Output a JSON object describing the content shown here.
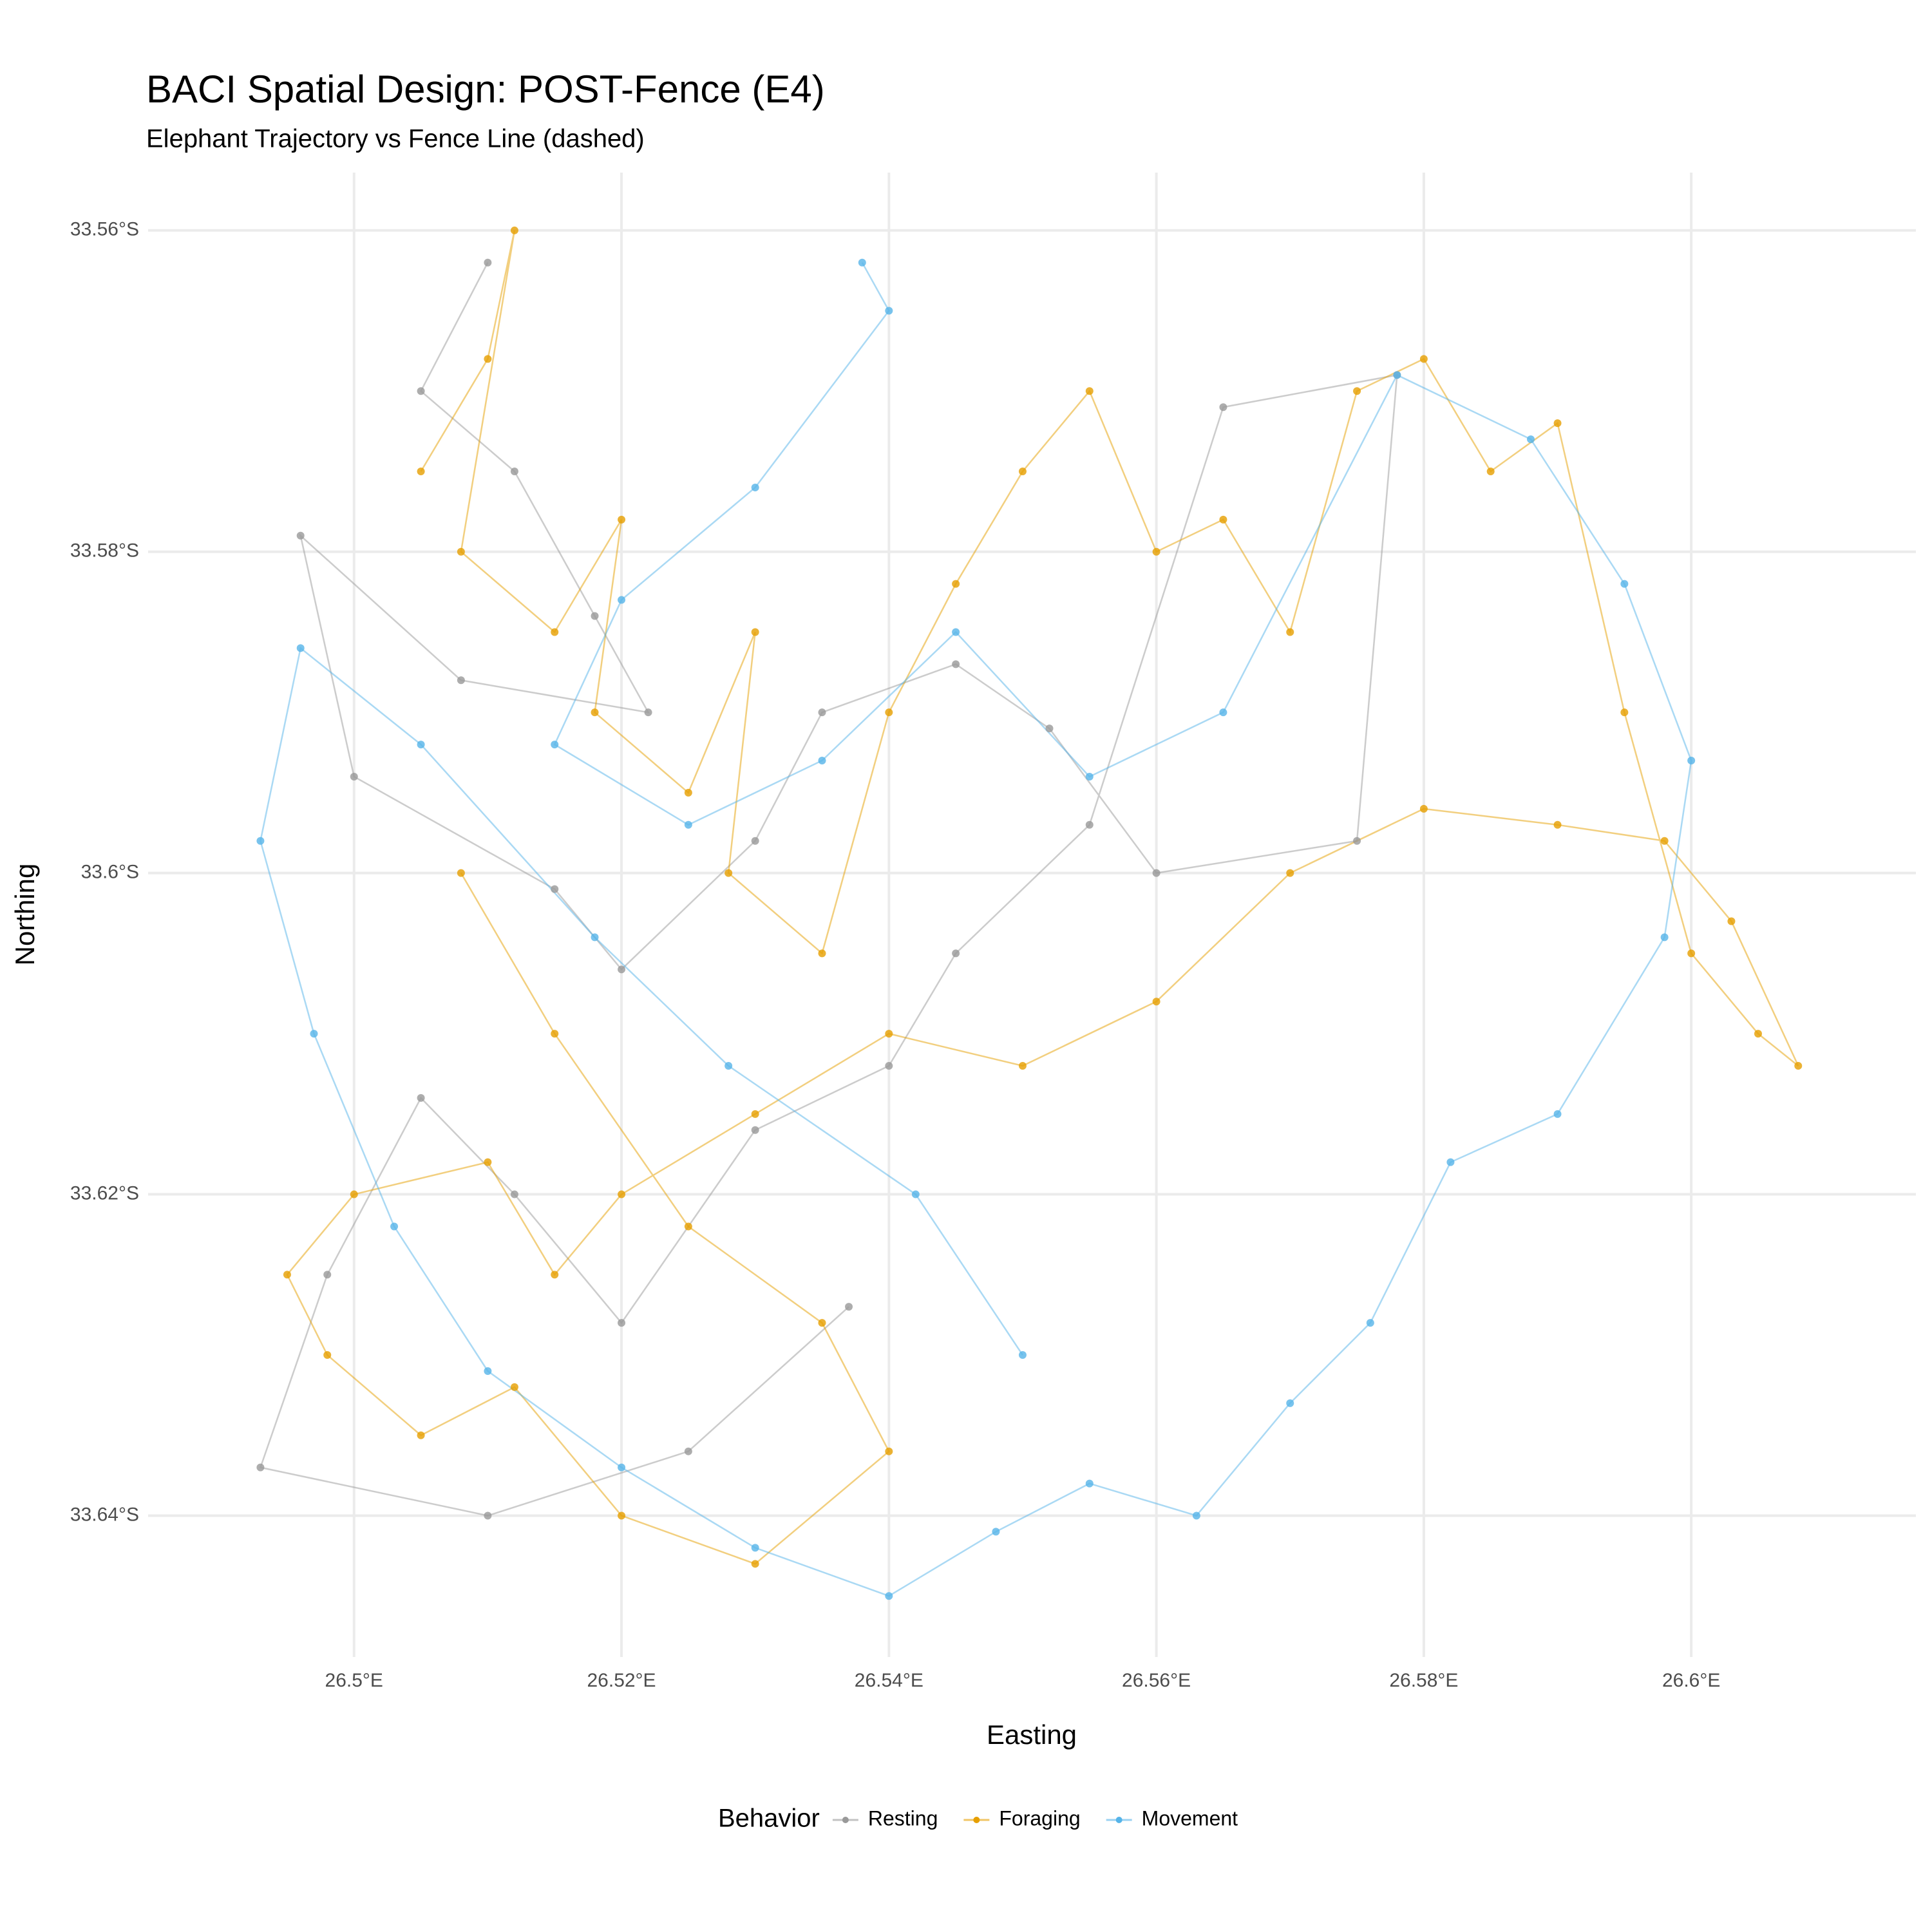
{
  "chart_data": {
    "type": "scatter",
    "title": "BACI Spatial Design: POST-Fence (E4)",
    "subtitle": "Elephant Trajectory vs Fence Line (dashed)",
    "x_label": "Easting",
    "y_label": "Northing",
    "legend_title": "Behavior",
    "legend_position": "bottom",
    "grid": true,
    "xlim": [
      26.4846,
      26.6168
    ],
    "ylim": [
      -33.6488,
      -33.5564
    ],
    "xticks": [
      {
        "value": 26.5,
        "label": "26.5°E"
      },
      {
        "value": 26.52,
        "label": "26.52°E"
      },
      {
        "value": 26.54,
        "label": "26.54°E"
      },
      {
        "value": 26.56,
        "label": "26.56°E"
      },
      {
        "value": 26.58,
        "label": "26.58°E"
      },
      {
        "value": 26.6,
        "label": "26.6°E"
      }
    ],
    "yticks": [
      {
        "value": -33.56,
        "label": "33.56°S"
      },
      {
        "value": -33.58,
        "label": "33.58°S"
      },
      {
        "value": -33.6,
        "label": "33.6°S"
      },
      {
        "value": -33.62,
        "label": "33.62°S"
      },
      {
        "value": -33.64,
        "label": "33.64°S"
      }
    ],
    "series": [
      {
        "name": "Resting",
        "color": "#999999",
        "x": [
          26.51,
          26.505,
          26.512,
          26.518,
          26.522,
          26.508,
          26.496,
          26.5,
          26.515,
          26.52,
          26.53,
          26.535,
          26.545,
          26.552,
          26.56,
          26.575,
          26.578,
          26.565,
          26.555,
          26.545,
          26.54,
          26.53,
          26.52,
          26.512,
          26.505,
          26.498,
          26.493,
          26.51,
          26.525,
          26.537
        ],
        "values": [
          -33.562,
          -33.57,
          -33.575,
          -33.584,
          -33.59,
          -33.588,
          -33.579,
          -33.594,
          -33.601,
          -33.606,
          -33.598,
          -33.59,
          -33.587,
          -33.591,
          -33.6,
          -33.598,
          -33.569,
          -33.571,
          -33.597,
          -33.605,
          -33.612,
          -33.616,
          -33.628,
          -33.62,
          -33.614,
          -33.625,
          -33.637,
          -33.64,
          -33.636,
          -33.627
        ]
      },
      {
        "name": "Foraging",
        "color": "#E69F00",
        "x": [
          26.505,
          26.51,
          26.512,
          26.508,
          26.515,
          26.52,
          26.518,
          26.525,
          26.53,
          26.528,
          26.535,
          26.54,
          26.545,
          26.55,
          26.555,
          26.56,
          26.565,
          26.57,
          26.575,
          26.58,
          26.585,
          26.59,
          26.595,
          26.6,
          26.605,
          26.608,
          26.603,
          26.598,
          26.59,
          26.58,
          26.57,
          26.56,
          26.55,
          26.54,
          26.53,
          26.52,
          26.515,
          26.51,
          26.5,
          26.495,
          26.498,
          26.505,
          26.512,
          26.52,
          26.53,
          26.54,
          26.535,
          26.525,
          26.515,
          26.508
        ],
        "values": [
          -33.575,
          -33.568,
          -33.56,
          -33.58,
          -33.585,
          -33.578,
          -33.59,
          -33.595,
          -33.585,
          -33.6,
          -33.605,
          -33.59,
          -33.582,
          -33.575,
          -33.57,
          -33.58,
          -33.578,
          -33.585,
          -33.57,
          -33.568,
          -33.575,
          -33.572,
          -33.59,
          -33.605,
          -33.61,
          -33.612,
          -33.603,
          -33.598,
          -33.597,
          -33.596,
          -33.6,
          -33.608,
          -33.612,
          -33.61,
          -33.615,
          -33.62,
          -33.625,
          -33.618,
          -33.62,
          -33.625,
          -33.63,
          -33.635,
          -33.632,
          -33.64,
          -33.643,
          -33.636,
          -33.628,
          -33.622,
          -33.61,
          -33.6
        ]
      },
      {
        "name": "Movement",
        "color": "#56B4E9",
        "x": [
          26.538,
          26.54,
          26.53,
          26.52,
          26.515,
          26.525,
          26.535,
          26.545,
          26.555,
          26.565,
          26.578,
          26.588,
          26.595,
          26.6,
          26.598,
          26.59,
          26.582,
          26.576,
          26.57,
          26.563,
          26.555,
          26.548,
          26.54,
          26.53,
          26.52,
          26.51,
          26.503,
          26.497,
          26.493,
          26.496,
          26.505,
          26.518,
          26.528,
          26.542,
          26.55
        ],
        "values": [
          -33.562,
          -33.565,
          -33.576,
          -33.583,
          -33.592,
          -33.597,
          -33.593,
          -33.585,
          -33.594,
          -33.59,
          -33.569,
          -33.573,
          -33.582,
          -33.593,
          -33.604,
          -33.615,
          -33.618,
          -33.628,
          -33.633,
          -33.64,
          -33.638,
          -33.641,
          -33.645,
          -33.642,
          -33.637,
          -33.631,
          -33.622,
          -33.61,
          -33.598,
          -33.586,
          -33.592,
          -33.604,
          -33.612,
          -33.62,
          -33.63
        ]
      }
    ]
  }
}
